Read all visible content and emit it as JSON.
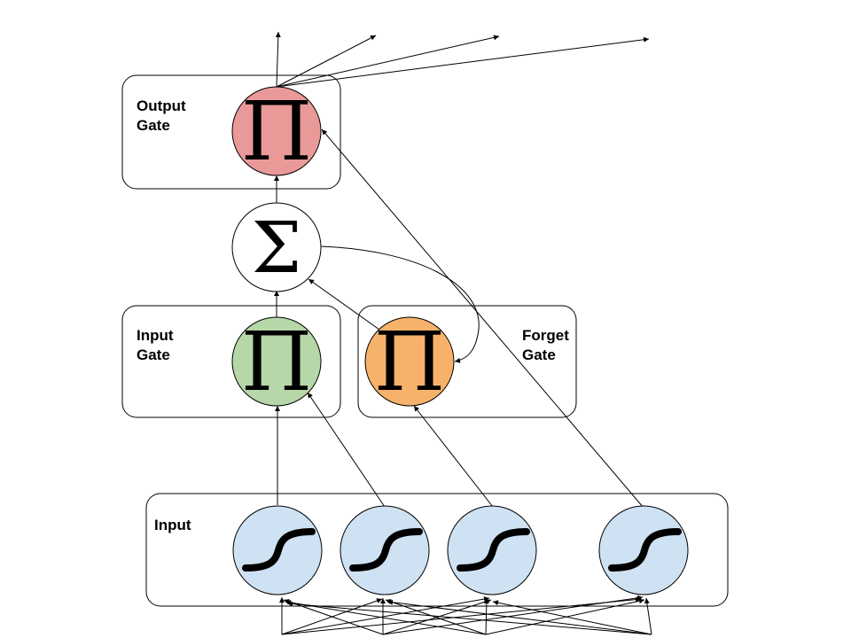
{
  "labels": {
    "output_gate": [
      "Output",
      "Gate"
    ],
    "input_gate": [
      "Input",
      "Gate"
    ],
    "forget_gate": [
      "Forget",
      "Gate"
    ],
    "input": "Input"
  },
  "symbols": {
    "product": "Π",
    "sum": "Σ"
  },
  "colors": {
    "output_product": "#ea9999",
    "input_product": "#b6d7a8",
    "forget_product": "#f6b26b",
    "sum": "#ffffff",
    "input_units": "#cfe2f3"
  },
  "icons": {
    "input_units": "sigmoid-icon"
  }
}
